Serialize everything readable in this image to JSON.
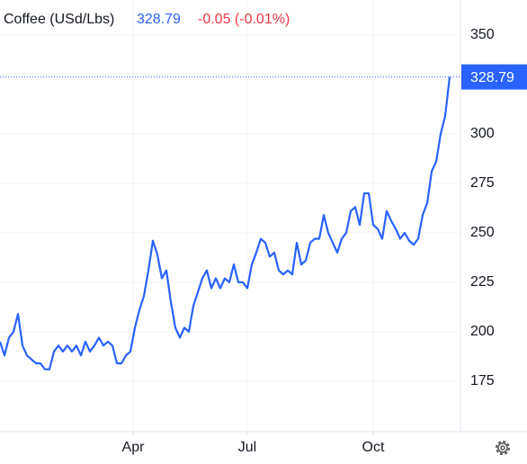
{
  "chart_data": {
    "type": "line",
    "title": "Coffee (USd/Lbs)",
    "change": "-0.05 (-0.01%)",
    "x": [
      0,
      1,
      2,
      3,
      4,
      5,
      6,
      7,
      8,
      9,
      10,
      11,
      12,
      13,
      14,
      15,
      16,
      17,
      18,
      19,
      20,
      21,
      22,
      23,
      24,
      25,
      26,
      27,
      28,
      29,
      30,
      31,
      32,
      33,
      34,
      35,
      36,
      37,
      38,
      39,
      40,
      41,
      42,
      43,
      44,
      45,
      46,
      47,
      48,
      49,
      50,
      51,
      52,
      53,
      54,
      55,
      56,
      57,
      58,
      59,
      60,
      61,
      62,
      63,
      64,
      65,
      66,
      67,
      68,
      69,
      70,
      71,
      72,
      73,
      74,
      75,
      76,
      77,
      78,
      79,
      80,
      81,
      82,
      83,
      84,
      85,
      86,
      87,
      88,
      89,
      90,
      91,
      92,
      93,
      94,
      95,
      96,
      97,
      98,
      99,
      100
    ],
    "series": [
      {
        "name": "Coffee",
        "color": "#2962ff",
        "values": [
          195,
          188,
          197,
          200,
          209,
          193,
          188,
          186,
          184,
          184,
          181,
          181,
          190,
          193,
          190,
          193,
          190,
          193,
          188,
          195,
          190,
          193,
          197,
          193,
          195,
          193,
          184,
          184,
          188,
          190,
          202,
          211,
          218,
          231,
          246,
          239,
          227,
          231,
          215,
          202,
          197,
          202,
          200,
          213,
          220,
          227,
          231,
          222,
          227,
          222,
          227,
          225,
          234,
          225,
          225,
          222,
          234,
          240,
          247,
          245,
          238,
          240,
          231,
          229,
          231,
          229,
          245,
          234,
          236,
          245,
          247,
          247,
          259,
          250,
          245,
          240,
          247,
          250,
          261,
          263,
          254,
          270,
          270,
          254,
          252,
          247,
          261,
          256,
          252,
          247,
          250,
          246,
          244,
          247,
          259,
          265,
          281,
          286,
          300,
          309,
          328.79
        ]
      }
    ],
    "xlim": [
      0,
      102.4
    ],
    "xticks": [
      {
        "value": 29.6,
        "label": "Apr"
      },
      {
        "value": 55,
        "label": "Jul"
      },
      {
        "value": 83,
        "label": "Oct"
      }
    ],
    "ylim": [
      149.5,
      367.7
    ],
    "yticks": [
      175,
      200,
      225,
      250,
      275,
      300,
      350
    ],
    "grid": true
  }
}
